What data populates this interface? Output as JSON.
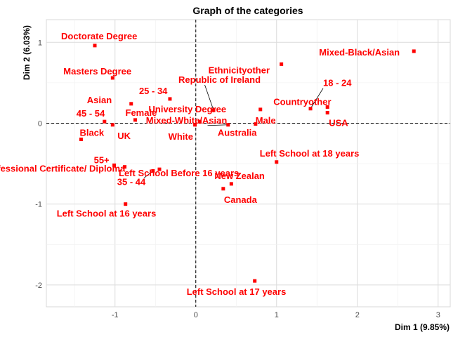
{
  "chart_data": {
    "type": "scatter",
    "title": "Graph of the categories",
    "xlabel": "Dim 1 (9.85%)",
    "ylabel": "Dim 2 (6.03%)",
    "xlim": [
      -1.85,
      3.15
    ],
    "ylim": [
      -2.27,
      1.28
    ],
    "xticks": [
      -1,
      0,
      1,
      2,
      3
    ],
    "yticks": [
      -2,
      -1,
      0,
      1
    ],
    "xtick_labels": [
      "-1",
      "0",
      "1",
      "2",
      "3"
    ],
    "ytick_labels": [
      "-2",
      "-1",
      "0",
      "1"
    ],
    "grid": true,
    "reference_lines": [
      {
        "axis": "x",
        "value": 0,
        "style": "dashed"
      },
      {
        "axis": "y",
        "value": 0,
        "style": "dashed"
      }
    ],
    "marker_color": "#ff0000",
    "points": [
      {
        "label": "Doctorate Degree",
        "x": -1.25,
        "y": 0.96
      },
      {
        "label": "Masters Degree",
        "x": -1.03,
        "y": 0.56
      },
      {
        "label": "Asian",
        "x": -0.8,
        "y": 0.24
      },
      {
        "label": "25 - 34",
        "x": -0.32,
        "y": 0.3
      },
      {
        "label": "45 - 54",
        "x": -1.13,
        "y": 0.02
      },
      {
        "label": "Female",
        "x": -0.75,
        "y": 0.04
      },
      {
        "label": "Black",
        "x": -1.42,
        "y": -0.2
      },
      {
        "label": "UK",
        "x": -1.03,
        "y": -0.02
      },
      {
        "label": "University Degree",
        "x": 0.05,
        "y": 0.02
      },
      {
        "label": "White",
        "x": -0.01,
        "y": -0.02
      },
      {
        "label": "Republic of Ireland",
        "x": 0.22,
        "y": 0.16
      },
      {
        "label": "Ethnicityother",
        "x": 1.06,
        "y": 0.73
      },
      {
        "label": "Mixed-White/Asian",
        "x": 0.4,
        "y": -0.02
      },
      {
        "label": "Australia",
        "x": 0.74,
        "y": -0.01
      },
      {
        "label": "Male",
        "x": 0.8,
        "y": 0.17
      },
      {
        "label": "Mixed-Black/Asian",
        "x": 2.7,
        "y": 0.89
      },
      {
        "label": "18 - 24",
        "x": 1.42,
        "y": 0.18
      },
      {
        "label": "Countryother",
        "x": 1.63,
        "y": 0.2
      },
      {
        "label": "USA",
        "x": 1.63,
        "y": 0.13
      },
      {
        "label": "55+",
        "x": -1.01,
        "y": -0.52
      },
      {
        "label": "Left School Before 16 years",
        "x": -0.45,
        "y": -0.57
      },
      {
        "label": "35 - 44",
        "x": -0.53,
        "y": -0.59
      },
      {
        "label": "Left School at 18 years",
        "x": 1.0,
        "y": -0.48
      },
      {
        "label": "New Zealan",
        "x": 0.44,
        "y": -0.75
      },
      {
        "label": "Canada",
        "x": 0.34,
        "y": -0.81
      },
      {
        "label": "Professional Certificate/ Diploma",
        "x": -0.88,
        "y": -0.54
      },
      {
        "label": "Left School at 16 years",
        "x": -0.87,
        "y": -1.0
      },
      {
        "label": "Left School at 17 years",
        "x": 0.73,
        "y": -1.95
      }
    ]
  }
}
